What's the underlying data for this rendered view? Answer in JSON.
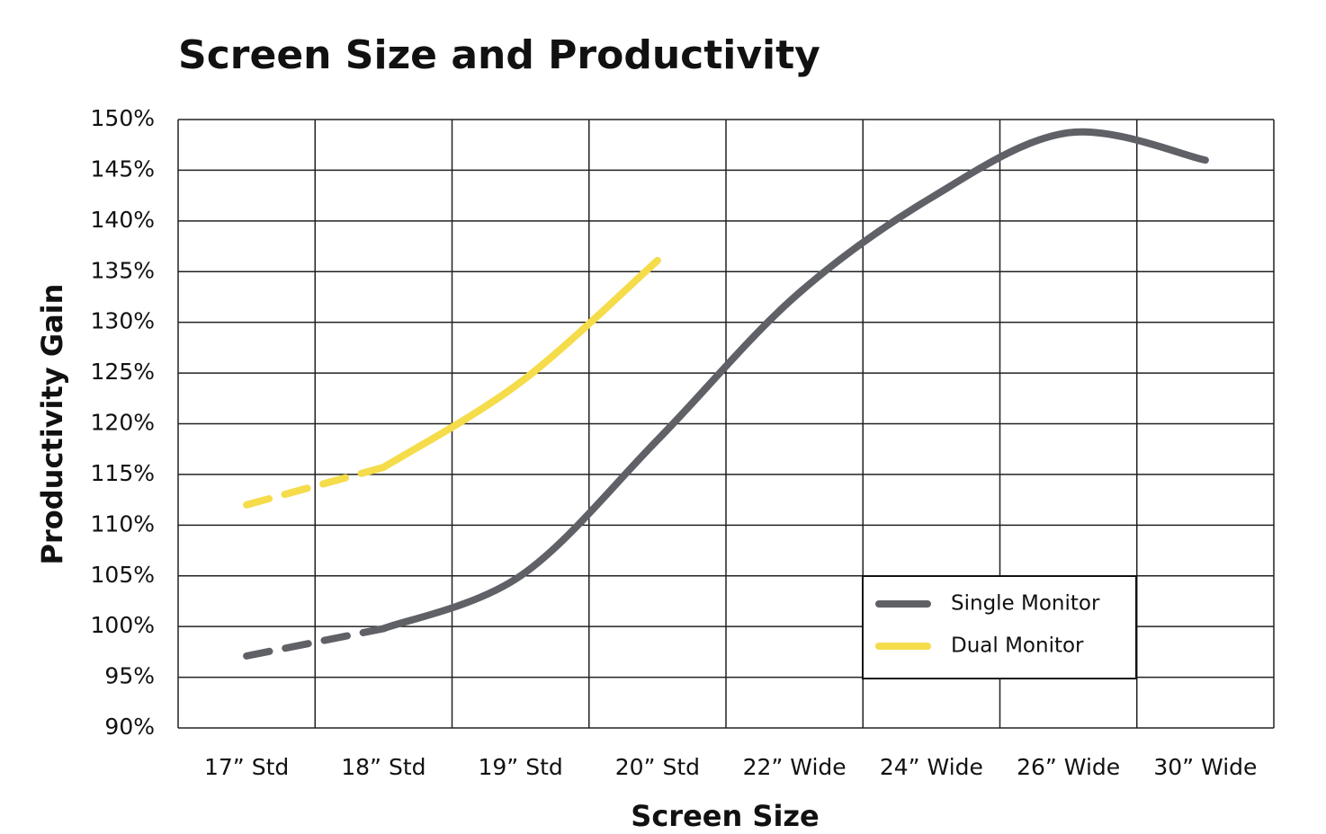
{
  "chart_data": {
    "type": "line",
    "title": "Screen Size and Productivity",
    "x_label": "Screen Size",
    "y_label": "Productivity Gain",
    "categories": [
      "17” Std",
      "18” Std",
      "19” Std",
      "20” Std",
      "22” Wide",
      "24” Wide",
      "26” Wide",
      "30” Wide"
    ],
    "series": [
      {
        "name": "Single Monitor",
        "color": "#5f6166",
        "values": [
          97.1,
          99.8,
          105,
          118.4,
          132.5,
          142.3,
          148.7,
          146
        ],
        "dashed_segments": [
          0
        ]
      },
      {
        "name": "Dual Monitor",
        "color": "#f5dc4a",
        "values": [
          112,
          115.7,
          124.1,
          136.1,
          null,
          null,
          null,
          null
        ],
        "dashed_segments": [
          0
        ]
      }
    ],
    "ylim": [
      90,
      150
    ],
    "yticks": [
      {
        "value": 90,
        "label": "90%"
      },
      {
        "value": 95,
        "label": "95%"
      },
      {
        "value": 100,
        "label": "100%"
      },
      {
        "value": 105,
        "label": "105%"
      },
      {
        "value": 110,
        "label": "110%"
      },
      {
        "value": 115,
        "label": "115%"
      },
      {
        "value": 120,
        "label": "120%"
      },
      {
        "value": 125,
        "label": "125%"
      },
      {
        "value": 130,
        "label": "130%"
      },
      {
        "value": 135,
        "label": "135%"
      },
      {
        "value": 140,
        "label": "140%"
      },
      {
        "value": 145,
        "label": "145%"
      },
      {
        "value": 150,
        "label": "150%"
      }
    ],
    "grid": true,
    "legend": "lower right"
  }
}
